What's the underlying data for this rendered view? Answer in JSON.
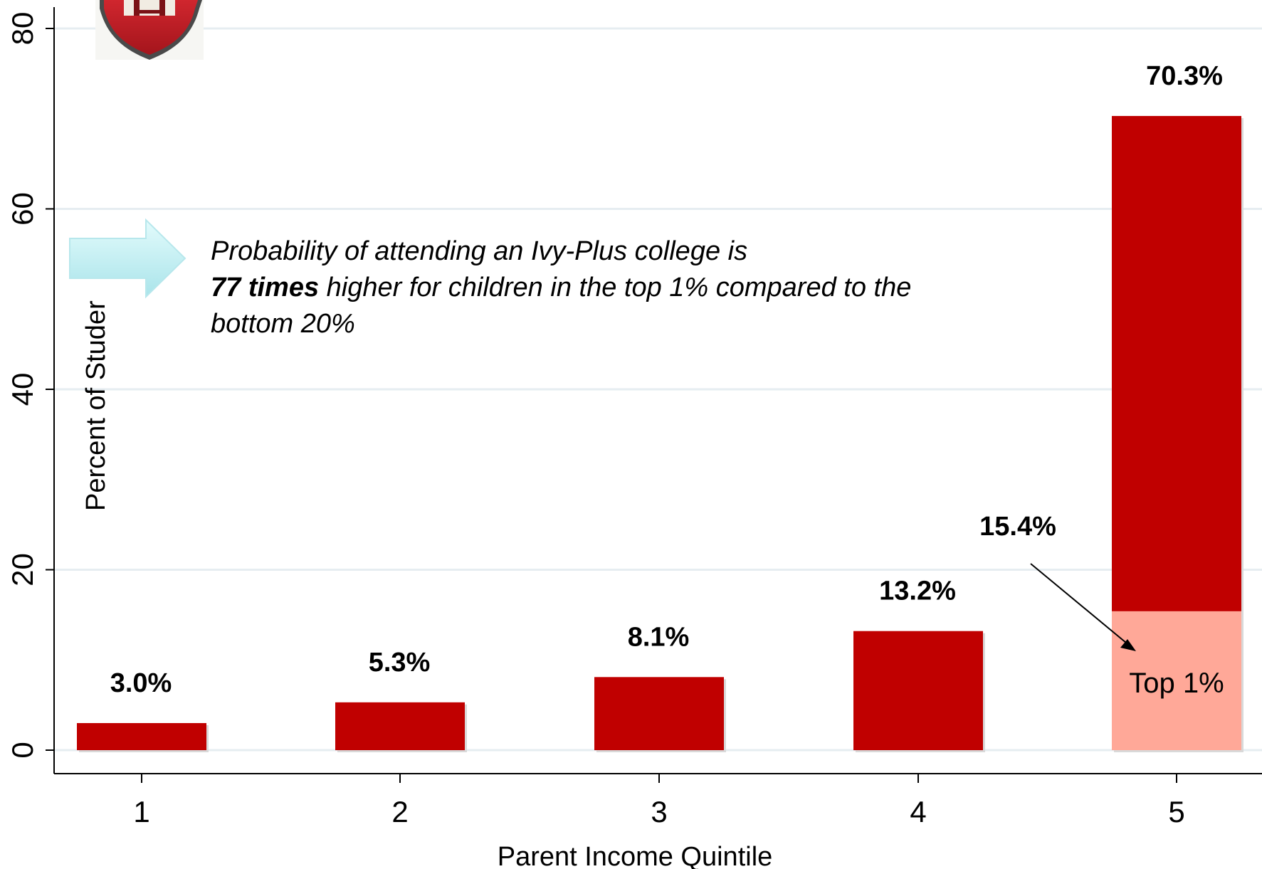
{
  "chart_data": {
    "type": "bar",
    "categories": [
      "1",
      "2",
      "3",
      "4",
      "5"
    ],
    "values": [
      3.0,
      5.3,
      8.1,
      13.2,
      70.3
    ],
    "value_labels": [
      "3.0%",
      "5.3%",
      "8.1%",
      "13.2%",
      "70.3%"
    ],
    "top1": {
      "value": 15.4,
      "value_label": "15.4%",
      "inset_label": "Top 1%",
      "category": "5"
    },
    "xlabel": "Parent Income Quintile",
    "ylabel": "Percent of Studer",
    "ylim": [
      0,
      80
    ],
    "yticks": [
      0,
      20,
      40,
      60,
      80
    ],
    "grid": true,
    "colors": {
      "bar": "#c00000",
      "top1": "#ffa898",
      "grid": "#e6edf1",
      "arrow_fill": "#c9f1f3"
    },
    "annotation": {
      "line1": "Probability of attending an Ivy-Plus college is",
      "line2_bold": "77 times",
      "line2_rest": " higher for children in the top 1% compared to the",
      "line3": "bottom 20%"
    },
    "logo": "harvard-shield-icon"
  }
}
